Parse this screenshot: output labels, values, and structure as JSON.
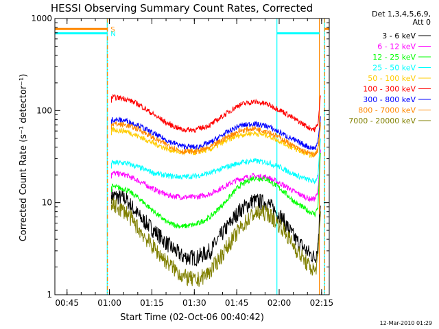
{
  "chart_data": {
    "type": "line",
    "title": "HESSI Observing Summary Count Rates, Corrected",
    "xlabel": "Start Time (02-Oct-06 00:40:42)",
    "ylabel": "Corrected Count Rate (s⁻¹ detector⁻¹)",
    "y_scale": "log",
    "ylim": [
      1,
      1000
    ],
    "xlim_minutes": [
      0,
      97
    ],
    "x_ticks": [
      {
        "label": "00:45",
        "min": 4.3
      },
      {
        "label": "01:00",
        "min": 19.3
      },
      {
        "label": "01:15",
        "min": 34.3
      },
      {
        "label": "01:30",
        "min": 49.3
      },
      {
        "label": "01:45",
        "min": 64.3
      },
      {
        "label": "02:00",
        "min": 79.3
      },
      {
        "label": "02:15",
        "min": 94.3
      }
    ],
    "y_ticks": [
      {
        "label": "1",
        "value": 1
      },
      {
        "label": "10",
        "value": 10
      },
      {
        "label": "100",
        "value": 100
      },
      {
        "label": "1000",
        "value": 1000
      }
    ],
    "legend_header": [
      "Det 1,3,4,5,6,9,",
      "Att 0"
    ],
    "series": [
      {
        "name": "3 - 6 keV",
        "color": "#000000",
        "points": [
          [
            20,
            12
          ],
          [
            25,
            11
          ],
          [
            30,
            7
          ],
          [
            35,
            5
          ],
          [
            40,
            3.5
          ],
          [
            45,
            2.6
          ],
          [
            50,
            2.5
          ],
          [
            55,
            3
          ],
          [
            60,
            5
          ],
          [
            65,
            8
          ],
          [
            70,
            10.5
          ],
          [
            75,
            10
          ],
          [
            80,
            7
          ],
          [
            85,
            4
          ],
          [
            90,
            2.8
          ],
          [
            92,
            2.5
          ],
          [
            93,
            3.5
          ],
          [
            94,
            12
          ]
        ]
      },
      {
        "name": "6 - 12 keV",
        "color": "#ff00ff",
        "points": [
          [
            20,
            21
          ],
          [
            25,
            20
          ],
          [
            30,
            17
          ],
          [
            35,
            14
          ],
          [
            40,
            12
          ],
          [
            45,
            11.5
          ],
          [
            50,
            11.5
          ],
          [
            55,
            12.5
          ],
          [
            60,
            15
          ],
          [
            65,
            18
          ],
          [
            70,
            19.5
          ],
          [
            75,
            19
          ],
          [
            80,
            16
          ],
          [
            85,
            13
          ],
          [
            90,
            11
          ],
          [
            92,
            11
          ],
          [
            93,
            13
          ],
          [
            94,
            40
          ]
        ]
      },
      {
        "name": "12 - 25 keV",
        "color": "#00ff00",
        "points": [
          [
            20,
            15
          ],
          [
            25,
            14
          ],
          [
            30,
            11
          ],
          [
            35,
            8
          ],
          [
            40,
            6
          ],
          [
            45,
            5.5
          ],
          [
            50,
            5.8
          ],
          [
            55,
            7
          ],
          [
            60,
            10
          ],
          [
            65,
            15
          ],
          [
            70,
            18.5
          ],
          [
            75,
            18
          ],
          [
            80,
            14
          ],
          [
            85,
            10
          ],
          [
            90,
            8
          ],
          [
            92,
            7.5
          ],
          [
            93,
            9
          ],
          [
            94,
            40
          ]
        ]
      },
      {
        "name": "25 - 50 keV",
        "color": "#00ffff",
        "points": [
          [
            20,
            27
          ],
          [
            25,
            27
          ],
          [
            30,
            24
          ],
          [
            35,
            21
          ],
          [
            40,
            19.5
          ],
          [
            45,
            19
          ],
          [
            50,
            19.5
          ],
          [
            55,
            21
          ],
          [
            60,
            24
          ],
          [
            65,
            27
          ],
          [
            70,
            28.5
          ],
          [
            75,
            27.5
          ],
          [
            80,
            24
          ],
          [
            85,
            20
          ],
          [
            90,
            17.5
          ],
          [
            92,
            17
          ],
          [
            93,
            20
          ],
          [
            94,
            50
          ]
        ]
      },
      {
        "name": "50 - 100 keV",
        "color": "#ffcc00",
        "points": [
          [
            20,
            62
          ],
          [
            25,
            60
          ],
          [
            30,
            52
          ],
          [
            35,
            44
          ],
          [
            40,
            38
          ],
          [
            45,
            35
          ],
          [
            50,
            35
          ],
          [
            55,
            38
          ],
          [
            60,
            46
          ],
          [
            65,
            54
          ],
          [
            70,
            57
          ],
          [
            75,
            54
          ],
          [
            80,
            46
          ],
          [
            85,
            38
          ],
          [
            90,
            33
          ],
          [
            92,
            33
          ],
          [
            93,
            38
          ],
          [
            94,
            70
          ]
        ]
      },
      {
        "name": "100 - 300 keV",
        "color": "#ff0000",
        "points": [
          [
            20,
            140
          ],
          [
            25,
            135
          ],
          [
            30,
            115
          ],
          [
            35,
            90
          ],
          [
            40,
            72
          ],
          [
            45,
            62
          ],
          [
            50,
            62
          ],
          [
            55,
            70
          ],
          [
            60,
            90
          ],
          [
            65,
            115
          ],
          [
            70,
            125
          ],
          [
            75,
            118
          ],
          [
            80,
            100
          ],
          [
            85,
            80
          ],
          [
            90,
            65
          ],
          [
            92,
            62
          ],
          [
            93,
            72
          ],
          [
            94,
            150
          ]
        ]
      },
      {
        "name": "300 - 800 keV",
        "color": "#0000ff",
        "points": [
          [
            20,
            80
          ],
          [
            25,
            78
          ],
          [
            30,
            68
          ],
          [
            35,
            56
          ],
          [
            40,
            47
          ],
          [
            45,
            41
          ],
          [
            50,
            40
          ],
          [
            55,
            45
          ],
          [
            60,
            56
          ],
          [
            65,
            68
          ],
          [
            70,
            72
          ],
          [
            75,
            68
          ],
          [
            80,
            57
          ],
          [
            85,
            47
          ],
          [
            90,
            40
          ],
          [
            92,
            39
          ],
          [
            93,
            45
          ],
          [
            94,
            90
          ]
        ]
      },
      {
        "name": "800 - 7000 keV",
        "color": "#ff8800",
        "points": [
          [
            20,
            72
          ],
          [
            25,
            70
          ],
          [
            30,
            62
          ],
          [
            35,
            50
          ],
          [
            40,
            42
          ],
          [
            45,
            36
          ],
          [
            50,
            36
          ],
          [
            55,
            40
          ],
          [
            60,
            50
          ],
          [
            65,
            60
          ],
          [
            70,
            64
          ],
          [
            75,
            60
          ],
          [
            80,
            50
          ],
          [
            85,
            40
          ],
          [
            90,
            34
          ],
          [
            92,
            33
          ],
          [
            93,
            38
          ],
          [
            94,
            75
          ]
        ]
      },
      {
        "name": "7000 - 20000 keV",
        "color": "#808000",
        "points": [
          [
            20,
            9.5
          ],
          [
            25,
            8
          ],
          [
            30,
            5
          ],
          [
            35,
            3.2
          ],
          [
            40,
            2.2
          ],
          [
            45,
            1.6
          ],
          [
            50,
            1.4
          ],
          [
            55,
            1.8
          ],
          [
            60,
            3
          ],
          [
            65,
            5
          ],
          [
            70,
            7.5
          ],
          [
            75,
            7.8
          ],
          [
            80,
            5.5
          ],
          [
            85,
            3.2
          ],
          [
            90,
            2
          ],
          [
            92,
            1.8
          ],
          [
            93,
            2.4
          ],
          [
            94,
            9
          ]
        ]
      }
    ],
    "flags": [
      {
        "label": "S",
        "color": "#ff8800",
        "value": 770,
        "segments": [
          [
            0,
            18.5
          ],
          [
            95.5,
            97
          ]
        ]
      },
      {
        "label": "N",
        "color": "#00ffff",
        "value": 690,
        "segments": [
          [
            0,
            18.5
          ],
          [
            78.5,
            93.5
          ]
        ]
      }
    ],
    "vlines": [
      {
        "min": 18.5,
        "color": "#00ffff",
        "dashed": false
      },
      {
        "min": 18.6,
        "color": "#ff8800",
        "dashed": true
      },
      {
        "min": 78.5,
        "color": "#00ffff",
        "dashed": false
      },
      {
        "min": 93.5,
        "color": "#ff8800",
        "dashed": false
      },
      {
        "min": 95.3,
        "color": "#00ffff",
        "dashed": false
      },
      {
        "min": 95.4,
        "color": "#ff8800",
        "dashed": true
      }
    ],
    "grid": false,
    "legend_position": "right"
  },
  "footer_timestamp": "12-Mar-2010 01:29"
}
